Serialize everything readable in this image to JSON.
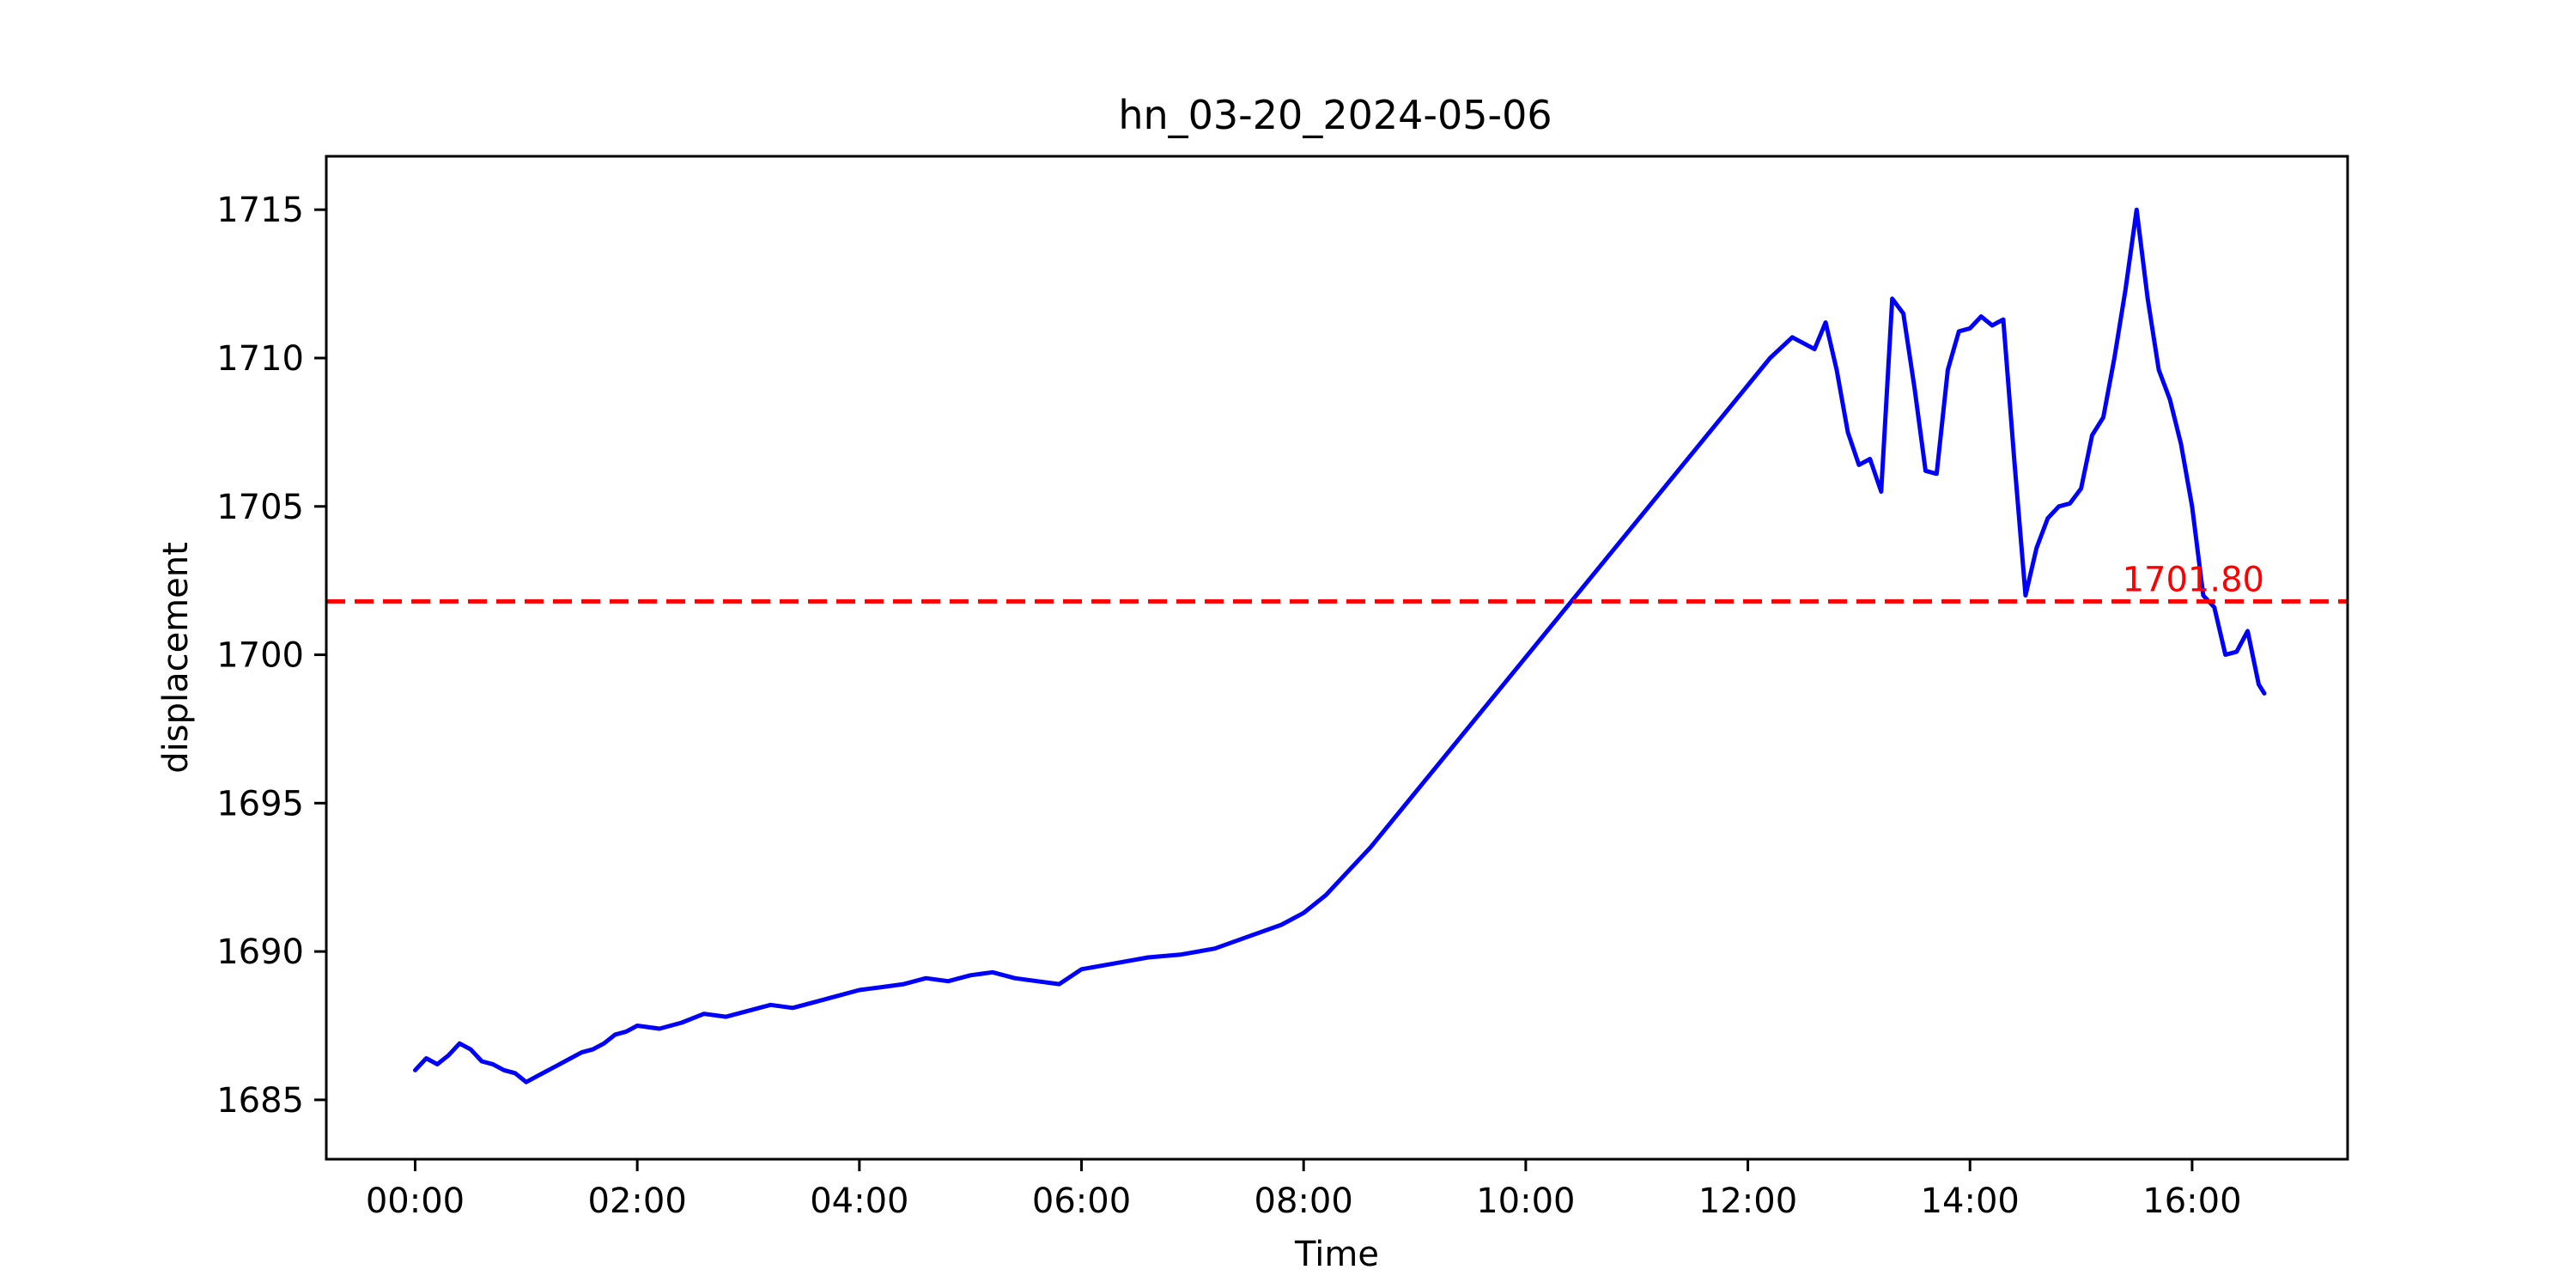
{
  "chart_data": {
    "type": "line",
    "title": "hn_03-20_2024-05-06",
    "xlabel": "Time",
    "ylabel": "displacement",
    "x_unit": "hours",
    "xlim": [
      -0.8,
      17.4
    ],
    "ylim": [
      1683.0,
      1716.8
    ],
    "x_ticks": [
      {
        "value": 0,
        "label": "00:00"
      },
      {
        "value": 2,
        "label": "02:00"
      },
      {
        "value": 4,
        "label": "04:00"
      },
      {
        "value": 6,
        "label": "06:00"
      },
      {
        "value": 8,
        "label": "08:00"
      },
      {
        "value": 10,
        "label": "10:00"
      },
      {
        "value": 12,
        "label": "12:00"
      },
      {
        "value": 14,
        "label": "14:00"
      },
      {
        "value": 16,
        "label": "16:00"
      }
    ],
    "y_ticks": [
      {
        "value": 1685,
        "label": "1685"
      },
      {
        "value": 1690,
        "label": "1690"
      },
      {
        "value": 1695,
        "label": "1695"
      },
      {
        "value": 1700,
        "label": "1700"
      },
      {
        "value": 1705,
        "label": "1705"
      },
      {
        "value": 1710,
        "label": "1710"
      },
      {
        "value": 1715,
        "label": "1715"
      }
    ],
    "grid": false,
    "series": [
      {
        "color": "#0000ff",
        "x": [
          0,
          0.1,
          0.2,
          0.3,
          0.4,
          0.5,
          0.6,
          0.7,
          0.8,
          0.9,
          1.0,
          1.1,
          1.2,
          1.3,
          1.4,
          1.5,
          1.6,
          1.7,
          1.8,
          1.9,
          2.0,
          2.2,
          2.4,
          2.6,
          2.8,
          3.0,
          3.2,
          3.4,
          3.6,
          3.8,
          4.0,
          4.2,
          4.4,
          4.6,
          4.8,
          5.0,
          5.2,
          5.4,
          5.6,
          5.8,
          6.0,
          6.3,
          6.6,
          6.9,
          7.2,
          7.5,
          7.8,
          8.0,
          8.2,
          8.4,
          8.6,
          12.2,
          12.4,
          12.6,
          12.7,
          12.8,
          12.9,
          13.0,
          13.1,
          13.2,
          13.3,
          13.4,
          13.5,
          13.6,
          13.7,
          13.8,
          13.9,
          14.0,
          14.1,
          14.2,
          14.3,
          14.4,
          14.5,
          14.6,
          14.7,
          14.8,
          14.9,
          15.0,
          15.1,
          15.2,
          15.3,
          15.4,
          15.5,
          15.6,
          15.7,
          15.8,
          15.9,
          16.0,
          16.1,
          16.2,
          16.3,
          16.4,
          16.5,
          16.6,
          16.65
        ],
        "y": [
          1686.0,
          1686.4,
          1686.2,
          1686.5,
          1686.9,
          1686.7,
          1686.3,
          1686.2,
          1686.0,
          1685.9,
          1685.6,
          1685.8,
          1686.0,
          1686.2,
          1686.4,
          1686.6,
          1686.7,
          1686.9,
          1687.2,
          1687.3,
          1687.5,
          1687.4,
          1687.6,
          1687.9,
          1687.8,
          1688.0,
          1688.2,
          1688.1,
          1688.3,
          1688.5,
          1688.7,
          1688.8,
          1688.9,
          1689.1,
          1689.0,
          1689.2,
          1689.3,
          1689.1,
          1689.0,
          1688.9,
          1689.4,
          1689.6,
          1689.8,
          1689.9,
          1690.1,
          1690.5,
          1690.9,
          1691.3,
          1691.9,
          1692.7,
          1693.5,
          1710.0,
          1710.7,
          1710.3,
          1711.2,
          1709.6,
          1707.5,
          1706.4,
          1706.6,
          1705.5,
          1712.0,
          1711.5,
          1709.0,
          1706.2,
          1706.1,
          1709.6,
          1710.9,
          1711.0,
          1711.4,
          1711.1,
          1711.3,
          1706.5,
          1702.0,
          1703.6,
          1704.6,
          1705.0,
          1705.1,
          1705.6,
          1707.4,
          1708.0,
          1710.0,
          1712.3,
          1715.0,
          1712.0,
          1709.6,
          1708.6,
          1707.1,
          1705.0,
          1702.0,
          1701.6,
          1700.0,
          1700.1,
          1700.8,
          1699.0,
          1698.7
        ]
      }
    ],
    "threshold": {
      "value": 1701.8,
      "label": "1701.80",
      "color": "#ff0000",
      "style": "dashed"
    }
  }
}
